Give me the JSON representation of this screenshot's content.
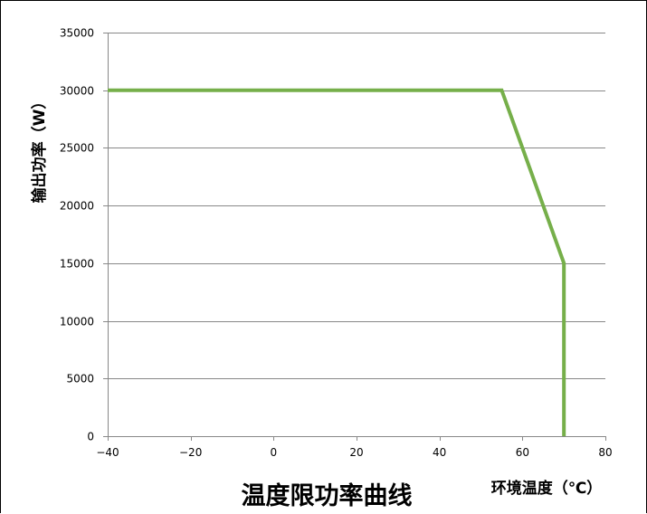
{
  "chart_data": {
    "type": "line",
    "title": "温度限功率曲线",
    "xlabel": "环境温度（℃）",
    "ylabel": "输出功率（W）",
    "xlim": [
      -40,
      80
    ],
    "ylim": [
      0,
      35000
    ],
    "x_ticks": [
      "−40",
      "−20",
      "0",
      "20",
      "40",
      "60",
      "80"
    ],
    "x_tick_values": [
      -40,
      -20,
      0,
      20,
      40,
      60,
      80
    ],
    "y_ticks": [
      "0",
      "5000",
      "10000",
      "15000",
      "20000",
      "25000",
      "30000",
      "35000"
    ],
    "y_tick_values": [
      0,
      5000,
      10000,
      15000,
      20000,
      25000,
      30000,
      35000
    ],
    "grid": "horizontal",
    "series": [
      {
        "color": "#76AF4A",
        "points": [
          {
            "x": -40,
            "y": 30000
          },
          {
            "x": 55,
            "y": 30000
          },
          {
            "x": 70,
            "y": 15000
          },
          {
            "x": 70,
            "y": 0
          }
        ]
      }
    ],
    "colors": {
      "line": "#76AF4A",
      "grid": "#888888",
      "axis": "#888888",
      "text": "#000000"
    }
  }
}
